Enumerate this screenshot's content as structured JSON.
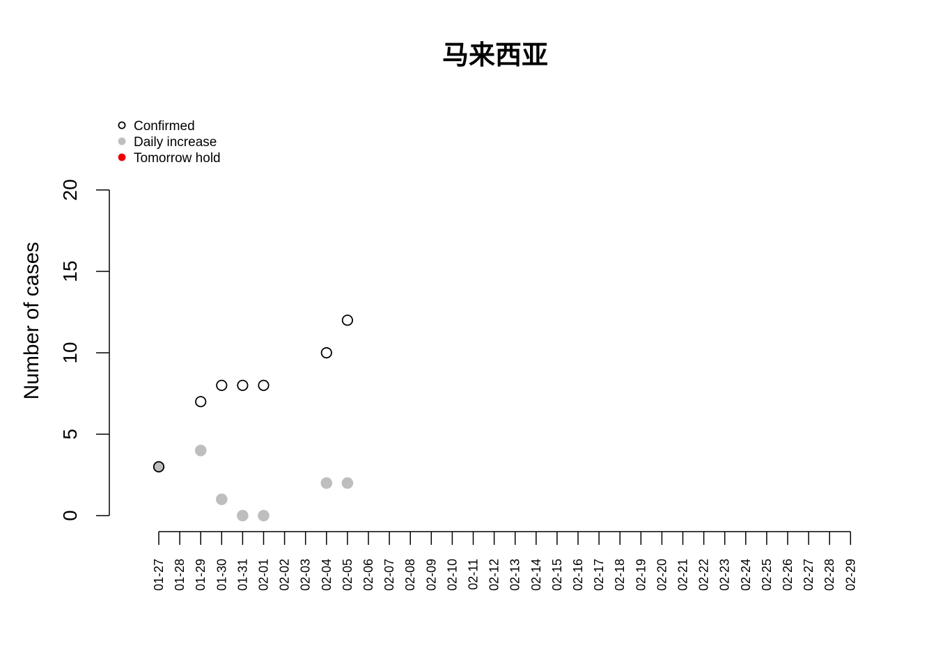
{
  "chart_data": {
    "type": "scatter",
    "title": "马来西亚",
    "xlabel": "",
    "ylabel": "Number of cases",
    "ylim": [
      0,
      20
    ],
    "yticks": [
      0,
      5,
      10,
      15,
      20
    ],
    "legend": {
      "placement": "top-left",
      "entries": [
        {
          "label": "Confirmed",
          "marker": "open-circle",
          "color": "#000000"
        },
        {
          "label": "Daily increase",
          "marker": "filled-circle",
          "color": "#bebebe"
        },
        {
          "label": "Tomorrow hold",
          "marker": "filled-circle",
          "color": "#ee0000"
        }
      ]
    },
    "categories": [
      "01-27",
      "01-28",
      "01-29",
      "01-30",
      "01-31",
      "02-01",
      "02-02",
      "02-03",
      "02-04",
      "02-05",
      "02-06",
      "02-07",
      "02-08",
      "02-09",
      "02-10",
      "02-11",
      "02-12",
      "02-13",
      "02-14",
      "02-15",
      "02-16",
      "02-17",
      "02-18",
      "02-19",
      "02-20",
      "02-21",
      "02-22",
      "02-23",
      "02-24",
      "02-25",
      "02-26",
      "02-27",
      "02-28",
      "02-29"
    ],
    "series": [
      {
        "name": "Confirmed",
        "color": "#000000",
        "points": [
          {
            "x": "01-27",
            "y": 3
          },
          {
            "x": "01-29",
            "y": 7
          },
          {
            "x": "01-30",
            "y": 8
          },
          {
            "x": "01-31",
            "y": 8
          },
          {
            "x": "02-01",
            "y": 8
          },
          {
            "x": "02-04",
            "y": 10
          },
          {
            "x": "02-05",
            "y": 12
          }
        ]
      },
      {
        "name": "Daily increase",
        "color": "#bebebe",
        "points": [
          {
            "x": "01-27",
            "y": 3
          },
          {
            "x": "01-29",
            "y": 4
          },
          {
            "x": "01-30",
            "y": 1
          },
          {
            "x": "01-31",
            "y": 0
          },
          {
            "x": "02-01",
            "y": 0
          },
          {
            "x": "02-04",
            "y": 2
          },
          {
            "x": "02-05",
            "y": 2
          }
        ]
      },
      {
        "name": "Tomorrow hold",
        "color": "#ee0000",
        "points": []
      }
    ]
  }
}
